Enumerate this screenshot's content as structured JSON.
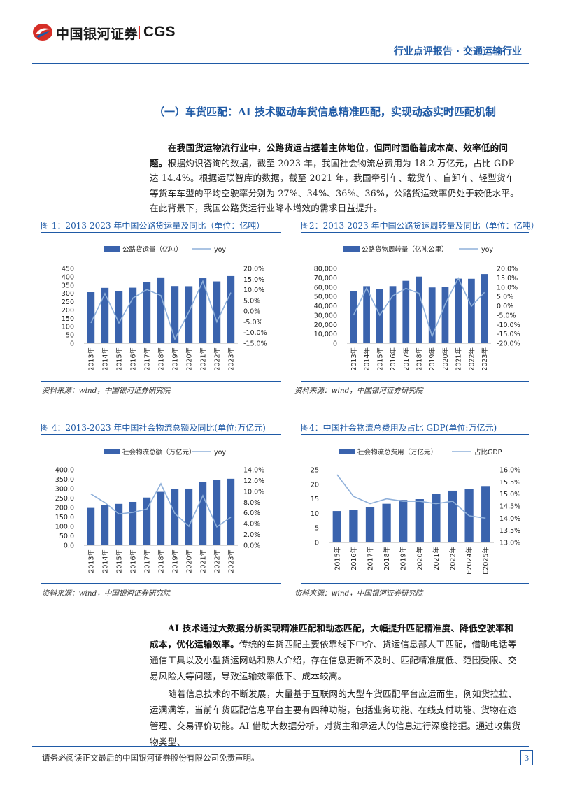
{
  "header": {
    "logo_cn": "中国银河证券",
    "logo_en": "CGS",
    "report_type": "行业点评报告 · 交通运输行业"
  },
  "section": {
    "title": "（一）车货匹配：AI 技术驱动车货信息精准匹配，实现动态实时匹配机制"
  },
  "intro": {
    "bold": "在我国货运物流行业中，公路货运占据着主体地位，但同时面临着成本高、效率低的问题。",
    "text": "根据灼识咨询的数据，截至 2023 年，我国社会物流总费用为 18.2 万亿元，占比 GDP 达 14.4%。根据运联智库的数据，截至 2021 年，我国牵引车、载货车、自卸车、轻型货车等货车车型的平均空驶率分别为 27%、34%、36%、36%，公路货运效率仍处于较低水平。在此背景下，我国公路货运行业降本增效的需求日益提升。"
  },
  "figures": {
    "fig1": {
      "title": "图 1：2013-2023 年中国公路货运量及同比（单位：亿吨）",
      "source": "资料来源：wind，中国银河证券研究院"
    },
    "fig2": {
      "title": "图2：2013-2023 年中国公路货运周转量及同比（单位：亿吨）",
      "source": "资料来源：wind，中国银河证券研究院"
    },
    "fig3": {
      "title": "图 4：2013-2023 年中国社会物流总额及同比(单位:万亿元)",
      "source": "资料来源：wind，中国银河证券研究院"
    },
    "fig4": {
      "title": "图4：中国社会物流总费用及占比 GDP(单位:万亿元)",
      "source": "资料来源：wind，中国银河证券研究院"
    }
  },
  "chart_data": [
    {
      "id": "c1",
      "type": "bar+line",
      "categories": [
        "2013年",
        "2014年",
        "2015年",
        "2016年",
        "2017年",
        "2018年",
        "2019年",
        "2020年",
        "2021年",
        "2022年",
        "2023年"
      ],
      "series": [
        {
          "name": "公路货运量（亿吨）",
          "kind": "bar",
          "axis": "left",
          "values": [
            307,
            333,
            315,
            334,
            368,
            396,
            344,
            343,
            391,
            372,
            404
          ]
        },
        {
          "name": "yoy",
          "kind": "line",
          "axis": "right",
          "values": [
            -0.055,
            0.082,
            -0.055,
            0.061,
            0.101,
            0.073,
            -0.131,
            -0.003,
            0.14,
            -0.05,
            0.087
          ]
        }
      ],
      "left_axis": {
        "min": 0,
        "max": 450,
        "step": 50,
        "ticks": [
          "0",
          "50",
          "100",
          "150",
          "200",
          "250",
          "300",
          "350",
          "400",
          "450"
        ]
      },
      "right_axis": {
        "min": -0.15,
        "max": 0.2,
        "ticks": [
          "-15.0%",
          "-10.0%",
          "-5.0%",
          "0.0%",
          "5.0%",
          "10.0%",
          "15.0%",
          "20.0%"
        ]
      }
    },
    {
      "id": "c2",
      "type": "bar+line",
      "categories": [
        "2013年",
        "2014年",
        "2015年",
        "2016年",
        "2017年",
        "2018年",
        "2019年",
        "2020年",
        "2021年",
        "2022年",
        "2023年"
      ],
      "series": [
        {
          "name": "公路货物周转量（亿吨公里）",
          "kind": "bar",
          "axis": "left",
          "values": [
            55738,
            61017,
            57956,
            61080,
            66772,
            71249,
            59636,
            60172,
            69088,
            68958,
            73950
          ]
        },
        {
          "name": "yoy",
          "kind": "line",
          "axis": "right",
          "values": [
            -0.05,
            0.095,
            -0.05,
            0.054,
            0.093,
            0.067,
            -0.163,
            0.009,
            0.148,
            -0.002,
            0.072
          ]
        }
      ],
      "left_axis": {
        "min": 0,
        "max": 80000,
        "ticks": [
          "0",
          "10,000",
          "20,000",
          "30,000",
          "40,000",
          "50,000",
          "60,000",
          "70,000",
          "80,000"
        ]
      },
      "right_axis": {
        "min": -0.2,
        "max": 0.2,
        "ticks": [
          "-20.0%",
          "-15.0%",
          "-10.0%",
          "-5.0%",
          "0.0%",
          "5.0%",
          "10.0%",
          "15.0%",
          "20.0%"
        ]
      }
    },
    {
      "id": "c3",
      "type": "bar+line",
      "categories": [
        "2013年",
        "2014年",
        "2015年",
        "2016年",
        "2017年",
        "2018年",
        "2019年",
        "2020年",
        "2021年",
        "2022年",
        "2023年"
      ],
      "series": [
        {
          "name": "社会物流总额（万亿元）",
          "kind": "bar",
          "axis": "left",
          "values": [
            197.8,
            213.5,
            219.2,
            229.7,
            252.8,
            283.1,
            298,
            300.1,
            335.2,
            347.6,
            352.4
          ]
        },
        {
          "name": "yoy",
          "kind": "line",
          "axis": "right",
          "values": [
            0.095,
            0.079,
            0.058,
            0.061,
            0.067,
            0.114,
            0.059,
            0.035,
            0.092,
            0.034,
            0.052
          ]
        }
      ],
      "left_axis": {
        "min": 0,
        "max": 400,
        "ticks": [
          "0.0",
          "50.0",
          "100.0",
          "150.0",
          "200.0",
          "250.0",
          "300.0",
          "350.0",
          "400.0"
        ]
      },
      "right_axis": {
        "min": 0,
        "max": 0.14,
        "ticks": [
          "0.0%",
          "2.0%",
          "4.0%",
          "6.0%",
          "8.0%",
          "10.0%",
          "12.0%",
          "14.0%"
        ]
      }
    },
    {
      "id": "c4",
      "type": "bar+line",
      "categories": [
        "2015年",
        "2016年",
        "2017年",
        "2018年",
        "2019年",
        "2020年",
        "2021年",
        "2022年",
        "E2024年",
        "E2025年"
      ],
      "series": [
        {
          "name": "社会物流总费用（万亿元）",
          "kind": "bar",
          "axis": "left",
          "values": [
            10.8,
            11.1,
            12.1,
            13.3,
            14.6,
            14.9,
            16.7,
            17.8,
            18.3,
            19.4
          ]
        },
        {
          "name": "占比GDP",
          "kind": "line",
          "axis": "right",
          "values": [
            0.158,
            0.149,
            0.146,
            0.148,
            0.147,
            0.147,
            0.146,
            0.147,
            0.141,
            0.14
          ]
        }
      ],
      "left_axis": {
        "min": 0,
        "max": 25,
        "ticks": [
          "0",
          "5",
          "10",
          "15",
          "20",
          "25"
        ]
      },
      "right_axis": {
        "min": 0.13,
        "max": 0.16,
        "ticks": [
          "13.0%",
          "13.5%",
          "14.0%",
          "14.5%",
          "15.0%",
          "15.5%",
          "16.0%"
        ]
      }
    }
  ],
  "body2": {
    "p1_bold": "AI 技术通过大数据分析实现精准匹配和动态匹配，大幅提升匹配精准度、降低空驶率和成本，优化运输效率。",
    "p1_text": "传统的车货匹配主要依靠线下中介、货运信息部人工匹配，借助电话等通信工具以及小型货运网站和熟人介绍，存在信息更新不及时、匹配精准度低、范围受限、交易风险大等问题，导致运输效率低下、成本较高。",
    "p2_text": "随着信息技术的不断发展，大量基于互联网的大型车货匹配平台应运而生，例如货拉拉、运满满等，当前车货匹配信息平台主要有四种功能，包括业务功能、在线支付功能、货物在途管理、交易评价功能。AI 借助大数据分析，对货主和承运人的信息进行深度挖掘。通过收集货物类型、"
  },
  "footer": {
    "disclaimer": "请务必阅读正文最后的中国银河证券股份有限公司免责声明。",
    "page_number": "3"
  },
  "colors": {
    "brand_blue": "#1f5aa6",
    "bar_blue": "#3a63ad",
    "line_blue": "#8fb0da",
    "logo_red": "#d62e27"
  }
}
